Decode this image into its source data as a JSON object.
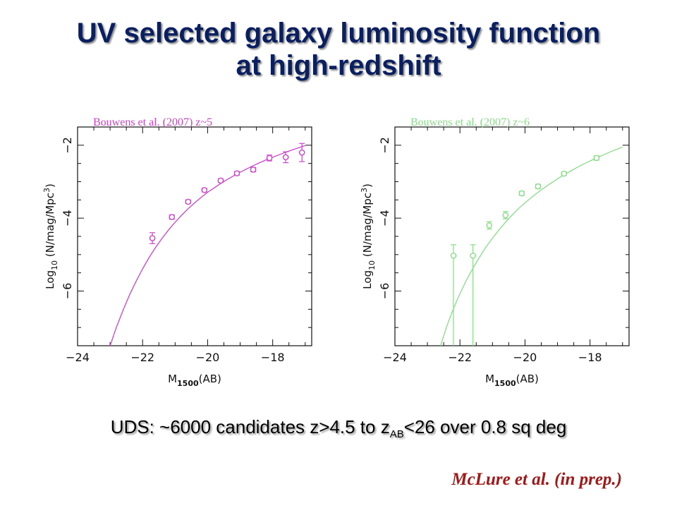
{
  "title": {
    "line1": "UV selected galaxy luminosity function",
    "line2": "at high-redshift"
  },
  "subtitle": {
    "pre": "UDS: ~6000 candidates z>4.5 to z",
    "sub": "AB",
    "post": "<26 over 0.8 sq deg"
  },
  "citation": {
    "text": "McLure et al. (in prep.)",
    "color": "#a01818"
  },
  "chart_data": [
    {
      "type": "scatter",
      "label": "Bouwens et al. (2007) z~5",
      "color": "#cc44cc",
      "xlabel_main": "M",
      "xlabel_sub": "1500",
      "xlabel_tail": "(AB)",
      "ylabel_main": "Log",
      "ylabel_sub": "10",
      "ylabel_tail": " (N/mag/Mpc",
      "ylabel_sup": "3",
      "ylabel_end": ")",
      "xlim": [
        -24,
        -16.8
      ],
      "ylim": [
        -7.5,
        -1.5
      ],
      "xticks": [
        -24,
        -22,
        -20,
        -18
      ],
      "yticks": [
        -2,
        -4,
        -6
      ],
      "x": [
        -21.7,
        -21.1,
        -20.6,
        -20.1,
        -19.6,
        -19.1,
        -18.6,
        -18.1,
        -17.6,
        -17.1
      ],
      "y": [
        -4.55,
        -3.97,
        -3.55,
        -3.23,
        -2.97,
        -2.77,
        -2.67,
        -2.35,
        -2.33,
        -2.2
      ],
      "yerr_low": [
        0.15,
        0.06,
        0.05,
        0.05,
        0.05,
        0.05,
        0.06,
        0.08,
        0.15,
        0.25
      ],
      "yerr_high": [
        0.15,
        0.06,
        0.05,
        0.05,
        0.05,
        0.05,
        0.06,
        0.08,
        0.15,
        0.25
      ],
      "curve_x": [
        -23,
        -22.8,
        -22.6,
        -22.4,
        -22.2,
        -22,
        -21.8,
        -21.6,
        -21.4,
        -21.2,
        -21,
        -20.8,
        -20.6,
        -20.4,
        -20.2,
        -20,
        -19.8,
        -19.6,
        -19.4,
        -19.2,
        -19,
        -18.8,
        -18.6,
        -18.4,
        -18.2,
        -18,
        -17.8,
        -17.6,
        -17.4,
        -17.2,
        -17
      ],
      "curve_y": [
        -7.5,
        -6.98,
        -6.52,
        -6.1,
        -5.73,
        -5.39,
        -5.08,
        -4.8,
        -4.55,
        -4.32,
        -4.11,
        -3.92,
        -3.74,
        -3.58,
        -3.43,
        -3.29,
        -3.17,
        -3.05,
        -2.94,
        -2.84,
        -2.74,
        -2.65,
        -2.56,
        -2.48,
        -2.4,
        -2.33,
        -2.26,
        -2.19,
        -2.13,
        -2.07,
        -2.01
      ]
    },
    {
      "type": "scatter",
      "label": "Bouwens et al. (2007) z~6",
      "color": "#88dd88",
      "xlabel_main": "M",
      "xlabel_sub": "1500",
      "xlabel_tail": "(AB)",
      "ylabel_main": "Log",
      "ylabel_sub": "10",
      "ylabel_tail": " (N/mag/Mpc",
      "ylabel_sup": "3",
      "ylabel_end": ")",
      "xlim": [
        -24,
        -16.8
      ],
      "ylim": [
        -7.5,
        -1.5
      ],
      "xticks": [
        -24,
        -22,
        -20,
        -18
      ],
      "yticks": [
        -2,
        -4,
        -6
      ],
      "x": [
        -22.2,
        -21.6,
        -21.1,
        -20.6,
        -20.1,
        -19.6,
        -18.8,
        -17.8
      ],
      "y": [
        -5.03,
        -5.03,
        -4.2,
        -3.92,
        -3.32,
        -3.13,
        -2.78,
        -2.35
      ],
      "yerr_low": [
        3.0,
        3.0,
        0.1,
        0.1,
        0.06,
        0.06,
        0.05,
        0.06
      ],
      "yerr_high": [
        0.3,
        0.3,
        0.1,
        0.1,
        0.06,
        0.06,
        0.05,
        0.06
      ],
      "curve_x": [
        -22.6,
        -22.4,
        -22.2,
        -22,
        -21.8,
        -21.6,
        -21.4,
        -21.2,
        -21,
        -20.8,
        -20.6,
        -20.4,
        -20.2,
        -20,
        -19.8,
        -19.6,
        -19.4,
        -19.2,
        -19,
        -18.8,
        -18.6,
        -18.4,
        -18.2,
        -18,
        -17.8,
        -17.6,
        -17.4,
        -17.2,
        -17
      ],
      "curve_y": [
        -7.5,
        -6.95,
        -6.48,
        -6.07,
        -5.7,
        -5.37,
        -5.07,
        -4.79,
        -4.55,
        -4.32,
        -4.11,
        -3.92,
        -3.74,
        -3.58,
        -3.43,
        -3.29,
        -3.16,
        -3.04,
        -2.92,
        -2.81,
        -2.71,
        -2.61,
        -2.52,
        -2.43,
        -2.35,
        -2.27,
        -2.19,
        -2.12,
        -2.05
      ]
    }
  ]
}
